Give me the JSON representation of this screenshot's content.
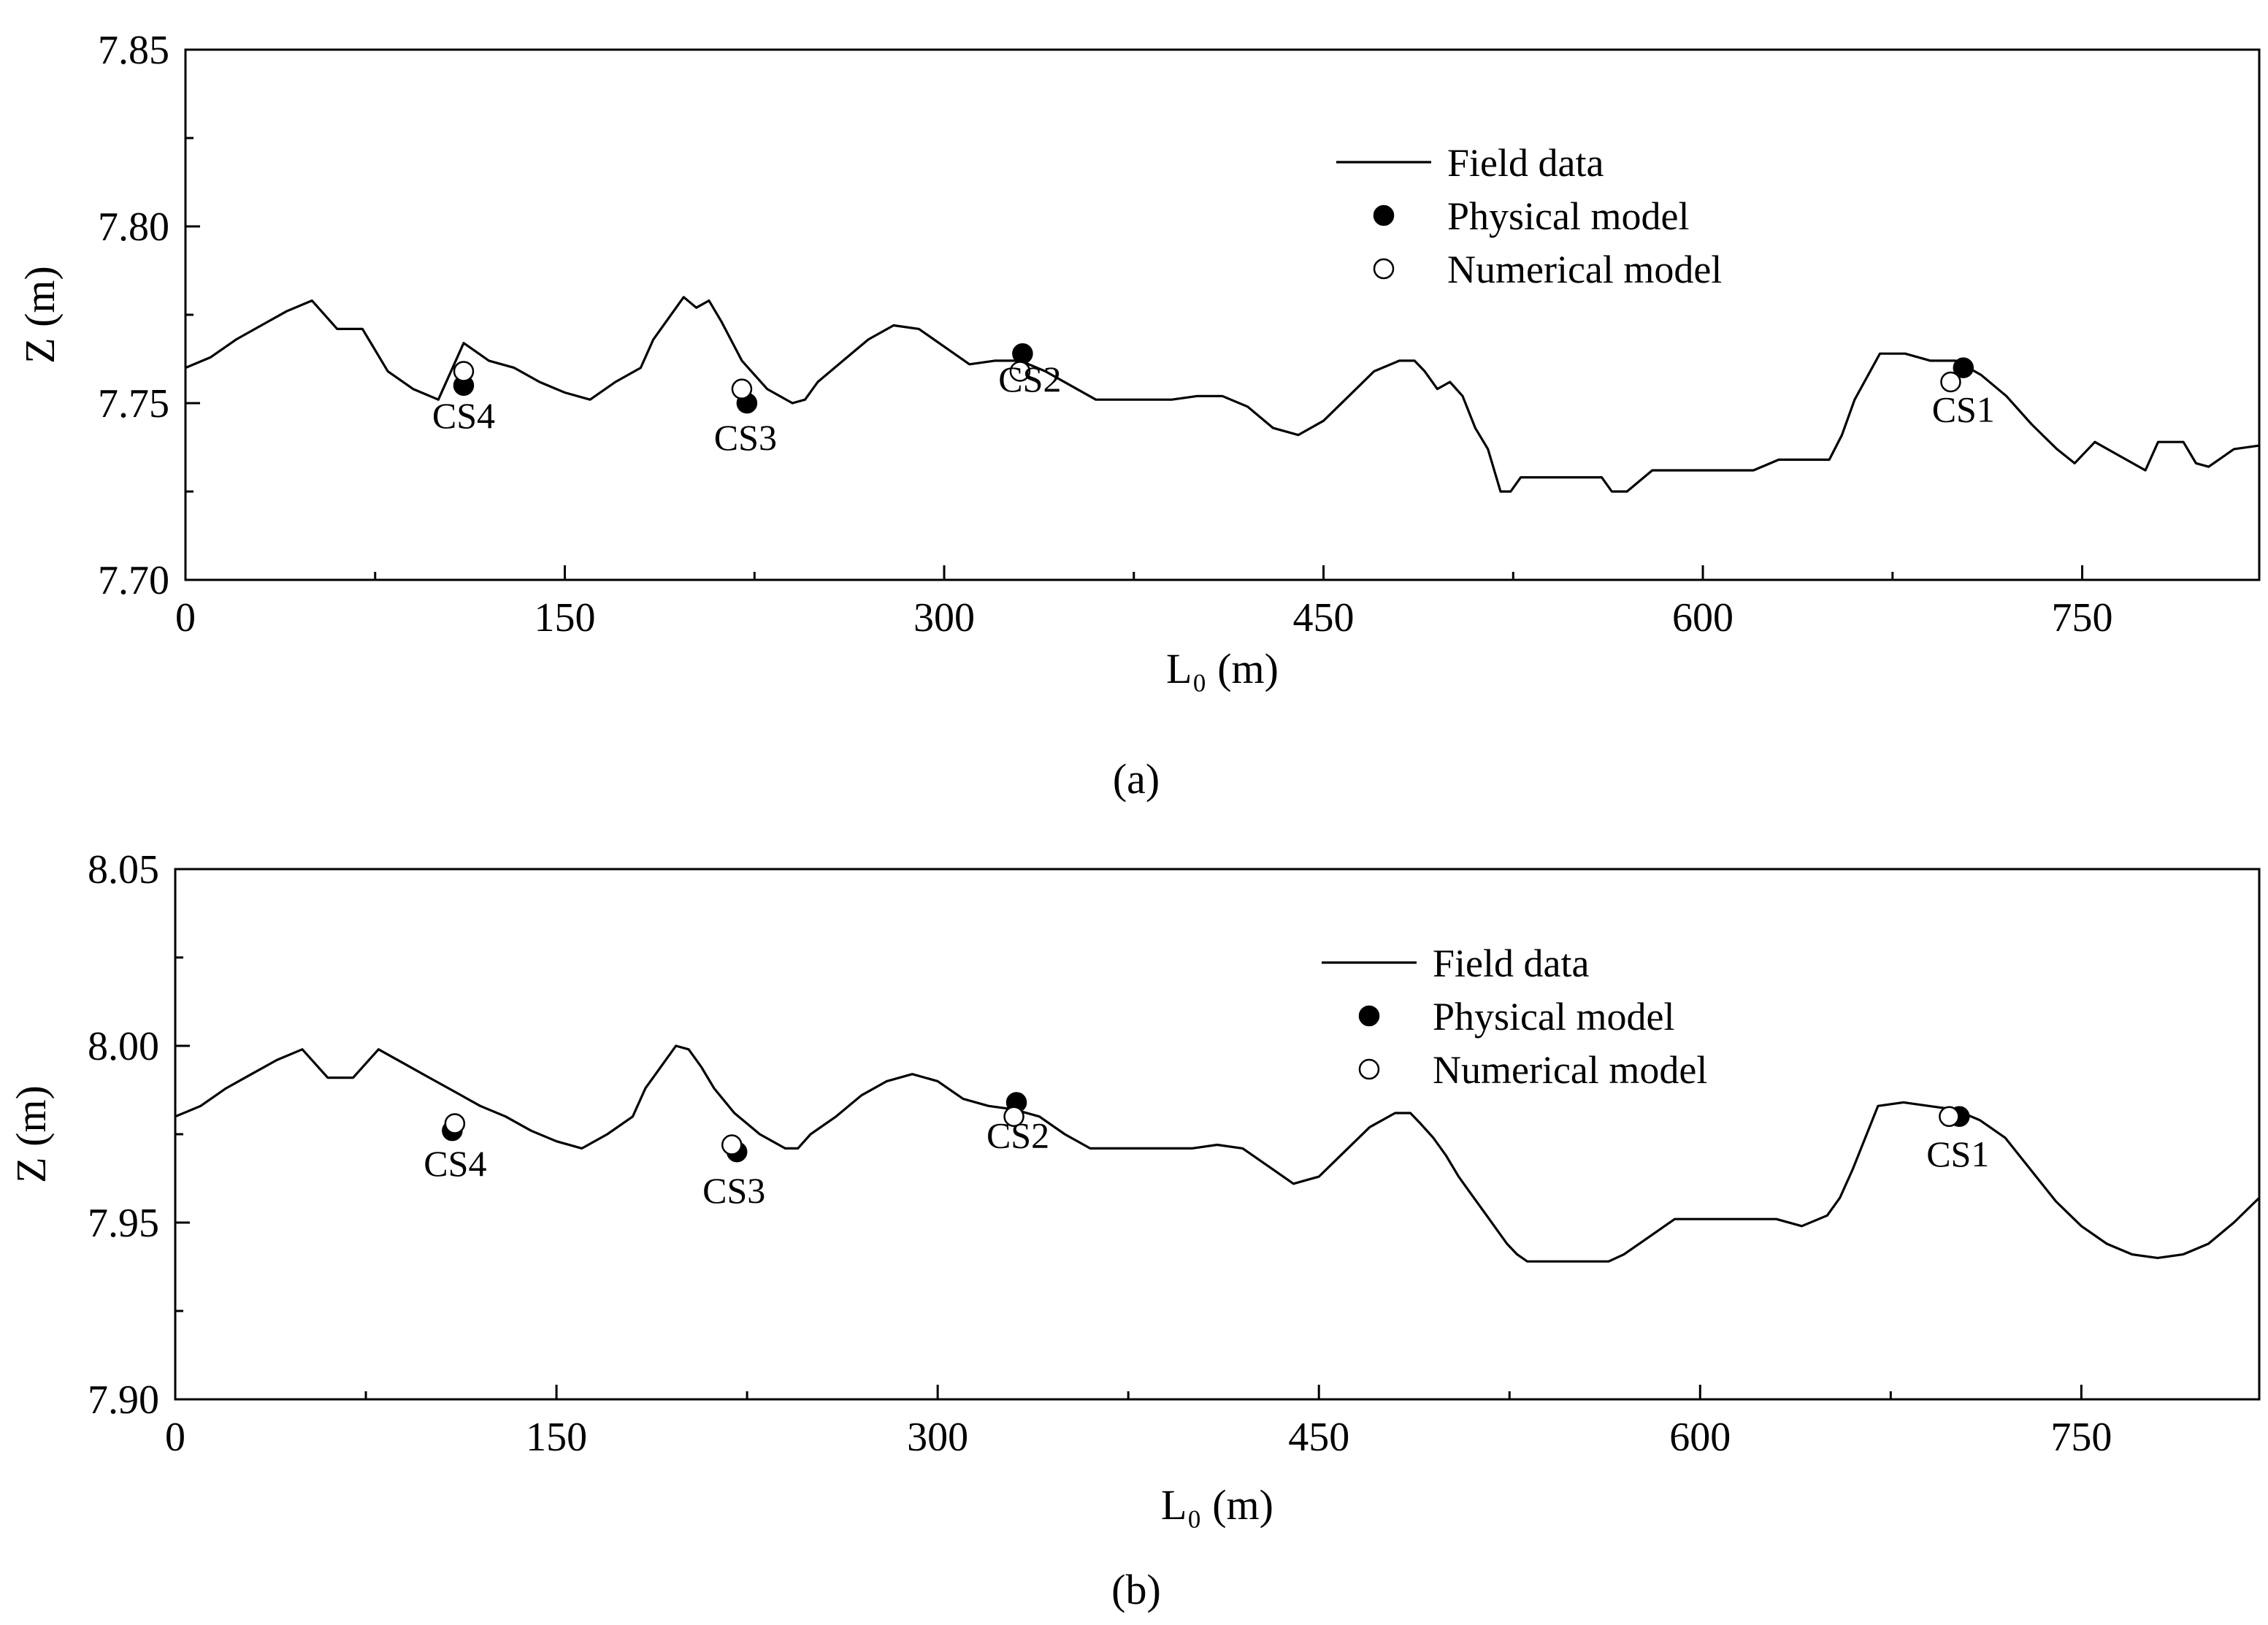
{
  "figure": {
    "panels": [
      "a",
      "b"
    ]
  },
  "colors": {
    "line": "#000000",
    "physical_fill": "#000000",
    "numerical_fill": "#ffffff",
    "background": "#ffffff"
  },
  "chart_data": [
    {
      "type": "line",
      "panel_label": "a",
      "panel_label_display": "(a)",
      "title": "",
      "xlabel": "L₀ (m)",
      "ylabel": "Z (m)",
      "xlim": [
        0,
        820
      ],
      "ylim": [
        7.7,
        7.85
      ],
      "xticks": [
        0,
        150,
        300,
        450,
        600,
        750
      ],
      "xtick_labels": [
        "0",
        "150",
        "300",
        "450",
        "600",
        "750"
      ],
      "yticks": [
        7.7,
        7.75,
        7.8,
        7.85
      ],
      "ytick_labels": [
        "7.70",
        "7.75",
        "7.80",
        "7.85"
      ],
      "grid": false,
      "legend": {
        "position": "top-right",
        "entries": [
          "Field data",
          "Physical model",
          "Numerical model"
        ]
      },
      "series": [
        {
          "name": "Field data",
          "kind": "line",
          "x": [
            0,
            10,
            20,
            30,
            40,
            50,
            60,
            70,
            80,
            90,
            100,
            110,
            120,
            130,
            140,
            150,
            160,
            170,
            180,
            185,
            190,
            197,
            202,
            207,
            212,
            220,
            230,
            240,
            245,
            250,
            260,
            270,
            280,
            290,
            300,
            310,
            320,
            330,
            340,
            350,
            360,
            370,
            380,
            390,
            400,
            410,
            420,
            430,
            440,
            450,
            460,
            470,
            480,
            486,
            490,
            495,
            500,
            505,
            510,
            515,
            520,
            524,
            528,
            532,
            540,
            550,
            560,
            564,
            570,
            580,
            590,
            600,
            610,
            620,
            630,
            640,
            650,
            655,
            660,
            670,
            680,
            690,
            700,
            710,
            720,
            730,
            740,
            747,
            755,
            765,
            775,
            780,
            790,
            795,
            800,
            810,
            820
          ],
          "y": [
            7.76,
            7.763,
            7.768,
            7.772,
            7.776,
            7.779,
            7.771,
            7.771,
            7.759,
            7.754,
            7.751,
            7.767,
            7.762,
            7.76,
            7.756,
            7.753,
            7.751,
            7.756,
            7.76,
            7.768,
            7.773,
            7.78,
            7.777,
            7.779,
            7.773,
            7.762,
            7.754,
            7.75,
            7.751,
            7.756,
            7.762,
            7.768,
            7.772,
            7.771,
            7.766,
            7.761,
            7.762,
            7.762,
            7.759,
            7.755,
            7.751,
            7.751,
            7.751,
            7.751,
            7.752,
            7.752,
            7.749,
            7.743,
            7.741,
            7.745,
            7.752,
            7.759,
            7.762,
            7.762,
            7.759,
            7.754,
            7.756,
            7.752,
            7.743,
            7.737,
            7.725,
            7.725,
            7.729,
            7.729,
            7.729,
            7.729,
            7.729,
            7.725,
            7.725,
            7.731,
            7.731,
            7.731,
            7.731,
            7.731,
            7.734,
            7.734,
            7.734,
            7.741,
            7.751,
            7.764,
            7.764,
            7.762,
            7.762,
            7.758,
            7.752,
            7.744,
            7.737,
            7.733,
            7.739,
            7.735,
            7.731,
            7.739,
            7.739,
            7.733,
            7.732,
            7.737,
            7.738
          ]
        },
        {
          "name": "Physical model",
          "kind": "scatter",
          "points": [
            {
              "label": "CS4",
              "x": 110,
              "y": 7.755
            },
            {
              "label": "CS3",
              "x": 222,
              "y": 7.75
            },
            {
              "label": "CS2",
              "x": 331,
              "y": 7.764
            },
            {
              "label": "CS1",
              "x": 703,
              "y": 7.76
            }
          ]
        },
        {
          "name": "Numerical model",
          "kind": "scatter",
          "points": [
            {
              "label": "CS4",
              "x": 110,
              "y": 7.759
            },
            {
              "label": "CS3",
              "x": 220,
              "y": 7.754
            },
            {
              "label": "CS2",
              "x": 330,
              "y": 7.759
            },
            {
              "label": "CS1",
              "x": 698,
              "y": 7.756
            }
          ]
        }
      ],
      "annotations": [
        "CS4",
        "CS3",
        "CS2",
        "CS1"
      ]
    },
    {
      "type": "line",
      "panel_label": "b",
      "panel_label_display": "(b)",
      "title": "",
      "xlabel": "L₀ (m)",
      "ylabel": "Z (m)",
      "xlim": [
        0,
        820
      ],
      "ylim": [
        7.9,
        8.05
      ],
      "xticks": [
        0,
        150,
        300,
        450,
        600,
        750
      ],
      "xtick_labels": [
        "0",
        "150",
        "300",
        "450",
        "600",
        "750"
      ],
      "yticks": [
        7.9,
        7.95,
        8.0,
        8.05
      ],
      "ytick_labels": [
        "7.90",
        "7.95",
        "8.00",
        "8.05"
      ],
      "grid": false,
      "legend": {
        "position": "top-right",
        "entries": [
          "Field data",
          "Physical model",
          "Numerical model"
        ]
      },
      "series": [
        {
          "name": "Field data",
          "kind": "line",
          "x": [
            0,
            10,
            20,
            30,
            40,
            50,
            60,
            70,
            80,
            90,
            100,
            110,
            120,
            130,
            140,
            150,
            160,
            170,
            180,
            185,
            190,
            197,
            202,
            207,
            212,
            220,
            230,
            240,
            245,
            250,
            260,
            270,
            280,
            290,
            300,
            310,
            320,
            330,
            340,
            350,
            360,
            370,
            380,
            390,
            400,
            410,
            420,
            430,
            440,
            450,
            460,
            470,
            480,
            486,
            490,
            495,
            500,
            505,
            510,
            515,
            520,
            524,
            528,
            532,
            540,
            550,
            560,
            564,
            570,
            580,
            590,
            600,
            610,
            620,
            630,
            640,
            650,
            655,
            660,
            670,
            680,
            690,
            700,
            710,
            720,
            730,
            740,
            750,
            760,
            770,
            780,
            790,
            800,
            810,
            820
          ],
          "y": [
            7.98,
            7.983,
            7.988,
            7.992,
            7.996,
            7.999,
            7.991,
            7.991,
            7.999,
            7.995,
            7.991,
            7.987,
            7.983,
            7.98,
            7.976,
            7.973,
            7.971,
            7.975,
            7.98,
            7.988,
            7.993,
            8.0,
            7.999,
            7.994,
            7.988,
            7.981,
            7.975,
            7.971,
            7.971,
            7.975,
            7.98,
            7.986,
            7.99,
            7.992,
            7.99,
            7.985,
            7.983,
            7.982,
            7.98,
            7.975,
            7.971,
            7.971,
            7.971,
            7.971,
            7.971,
            7.972,
            7.971,
            7.966,
            7.961,
            7.963,
            7.97,
            7.977,
            7.981,
            7.981,
            7.978,
            7.974,
            7.969,
            7.963,
            7.958,
            7.953,
            7.948,
            7.944,
            7.941,
            7.939,
            7.939,
            7.939,
            7.939,
            7.939,
            7.941,
            7.946,
            7.951,
            7.951,
            7.951,
            7.951,
            7.951,
            7.949,
            7.952,
            7.957,
            7.965,
            7.983,
            7.984,
            7.983,
            7.982,
            7.979,
            7.974,
            7.965,
            7.956,
            7.949,
            7.944,
            7.941,
            7.94,
            7.941,
            7.944,
            7.95,
            7.957
          ]
        },
        {
          "name": "Physical model",
          "kind": "scatter",
          "points": [
            {
              "label": "CS4",
              "x": 109,
              "y": 7.976
            },
            {
              "label": "CS3",
              "x": 221,
              "y": 7.97
            },
            {
              "label": "CS2",
              "x": 331,
              "y": 7.984
            },
            {
              "label": "CS1",
              "x": 702,
              "y": 7.98
            }
          ]
        },
        {
          "name": "Numerical model",
          "kind": "scatter",
          "points": [
            {
              "label": "CS4",
              "x": 110,
              "y": 7.978
            },
            {
              "label": "CS3",
              "x": 219,
              "y": 7.972
            },
            {
              "label": "CS2",
              "x": 330,
              "y": 7.98
            },
            {
              "label": "CS1",
              "x": 698,
              "y": 7.98
            }
          ]
        }
      ],
      "annotations": [
        "CS4",
        "CS3",
        "CS2",
        "CS1"
      ]
    }
  ]
}
